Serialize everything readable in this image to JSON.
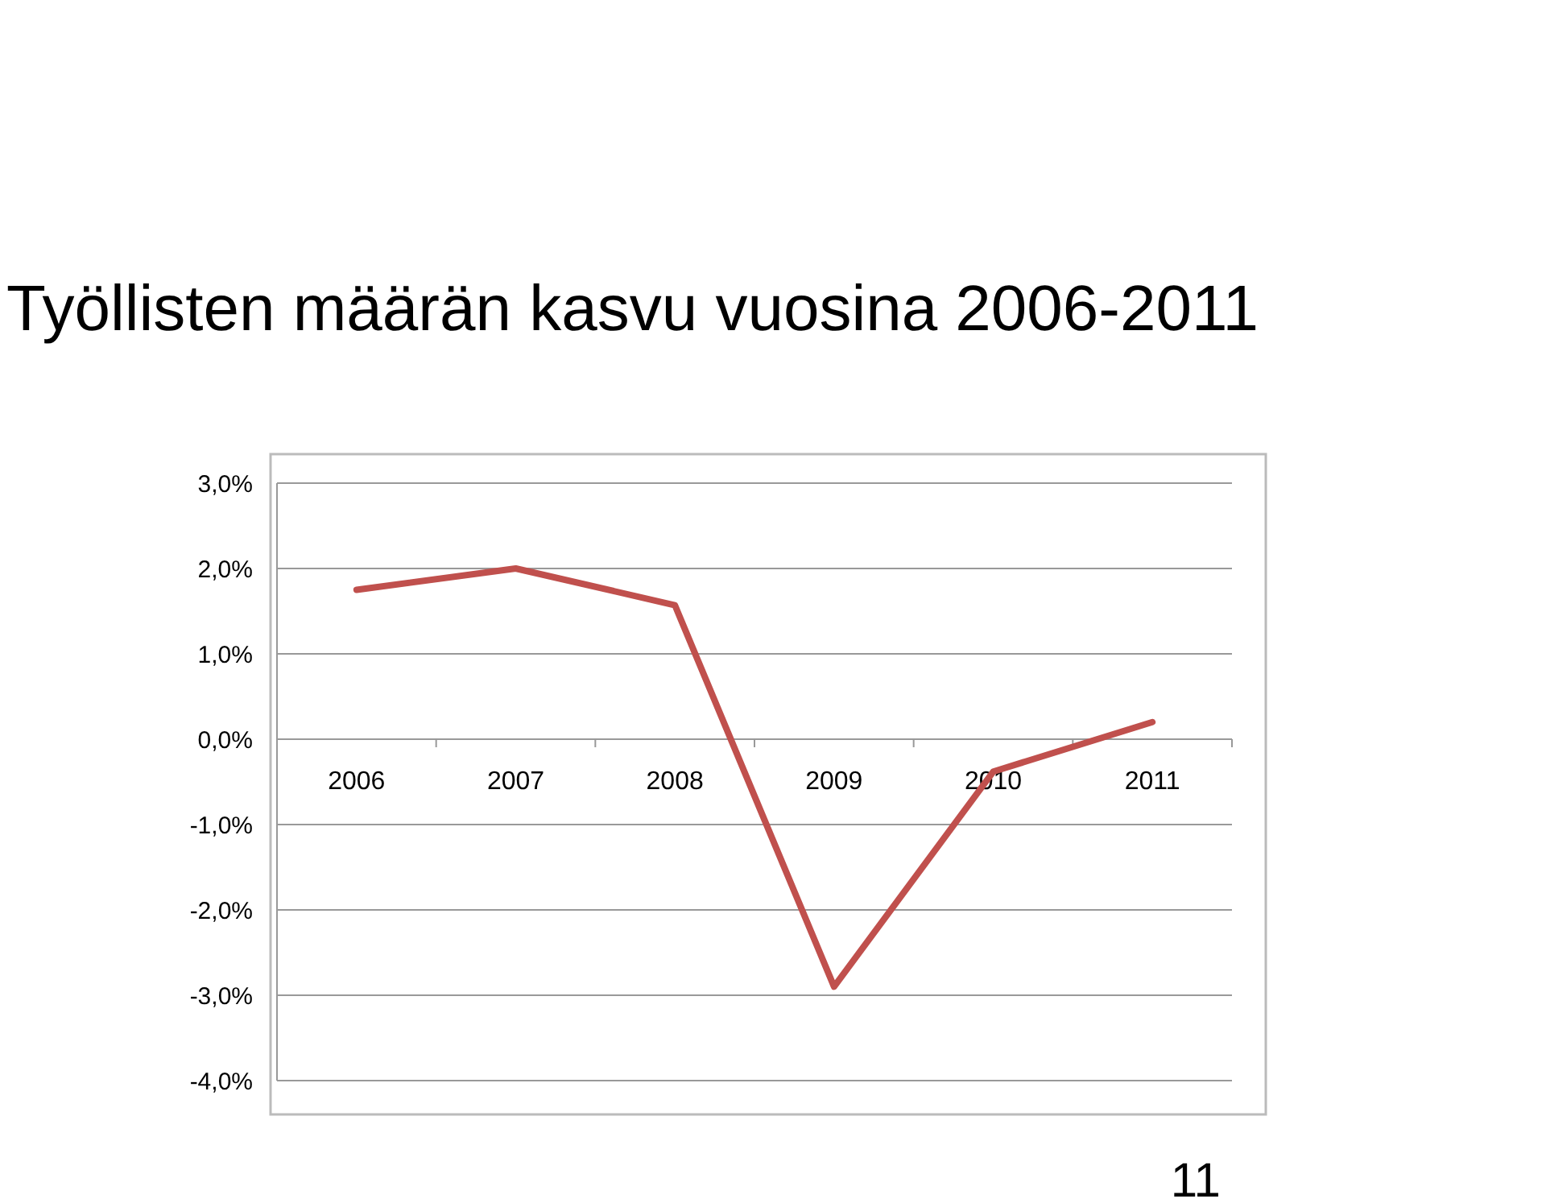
{
  "chart_data": {
    "type": "line",
    "title": "Työllisten määrän kasvu vuosina 2006-2011",
    "categories": [
      "2006",
      "2007",
      "2008",
      "2009",
      "2010",
      "2011"
    ],
    "series": [
      {
        "color": "#c0504d",
        "values": [
          1.75,
          2.0,
          1.57,
          -2.9,
          -0.38,
          0.2
        ]
      }
    ],
    "ylim": [
      -4,
      3
    ],
    "yticks": [
      {
        "value": -4,
        "label": "-4,0%"
      },
      {
        "value": -3,
        "label": "-3,0%"
      },
      {
        "value": -2,
        "label": "-2,0%"
      },
      {
        "value": -1,
        "label": "-1,0%"
      },
      {
        "value": 0,
        "label": "0,0%"
      },
      {
        "value": 1,
        "label": "1,0%"
      },
      {
        "value": 2,
        "label": "2,0%"
      },
      {
        "value": 3,
        "label": "3,0%"
      }
    ],
    "grid": "y",
    "marker": "none",
    "line_style": "solid",
    "annotations": [
      "11"
    ]
  }
}
